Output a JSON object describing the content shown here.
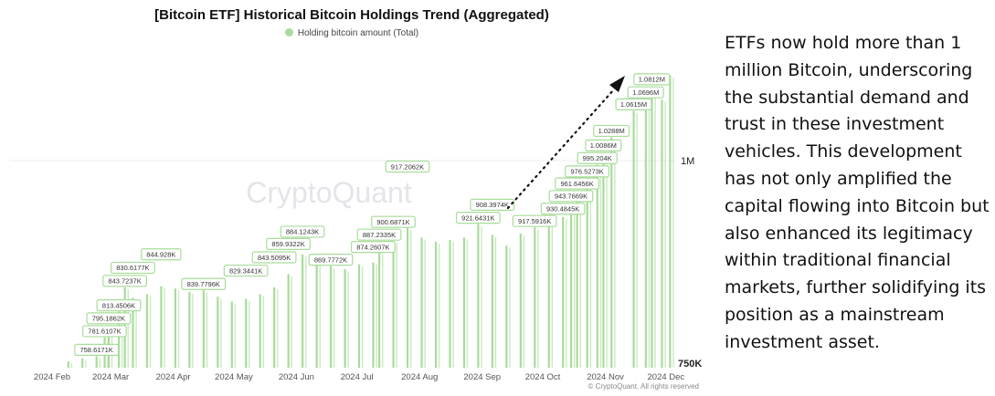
{
  "chart_data": {
    "type": "bar",
    "title": "[Bitcoin ETF] Historical Bitcoin Holdings Trend (Aggregated)",
    "legend": [
      {
        "name": "Holding bitcoin amount (Total)",
        "color": "#a8dc9a"
      }
    ],
    "legend_placement": "top-center",
    "watermark": "CryptoQuant",
    "x_ticks": [
      "2024 Feb",
      "2024 Mar",
      "2024 Apr",
      "2024 May",
      "2024 Jun",
      "2024 Jul",
      "2024 Aug",
      "2024 Sep",
      "2024 Oct",
      "2024 Nov",
      "2024 Dec"
    ],
    "y_ticks": [
      {
        "value": 1000,
        "label": "1M"
      },
      {
        "value": 750,
        "label": "750K"
      }
    ],
    "y_unit": "K BTC",
    "ylim": [
      750,
      1090
    ],
    "grid": "horizontal at 1M",
    "bar_color": "#a8dc9a",
    "series": [
      {
        "name": "Holding bitcoin amount (Total)",
        "points": [
          {
            "date": "2024-02-09",
            "value": 752
          },
          {
            "date": "2024-02-16",
            "value": 756
          },
          {
            "date": "2024-02-23",
            "value": 758.6,
            "label": "758.6171K"
          },
          {
            "date": "2024-02-27",
            "value": 781.6,
            "label": "781.6107K"
          },
          {
            "date": "2024-02-29",
            "value": 795.2,
            "label": "795.1862K"
          },
          {
            "date": "2024-03-05",
            "value": 813.5,
            "label": "813.4506K"
          },
          {
            "date": "2024-03-08",
            "value": 843.7,
            "label": "843.7237K"
          },
          {
            "date": "2024-03-12",
            "value": 830.6,
            "label": "830.6177K"
          },
          {
            "date": "2024-03-19",
            "value": 835
          },
          {
            "date": "2024-03-26",
            "value": 844.9,
            "label": "844.928K"
          },
          {
            "date": "2024-04-02",
            "value": 842
          },
          {
            "date": "2024-04-09",
            "value": 838
          },
          {
            "date": "2024-04-16",
            "value": 839.8,
            "label": "839.7796K"
          },
          {
            "date": "2024-04-23",
            "value": 832
          },
          {
            "date": "2024-04-30",
            "value": 826
          },
          {
            "date": "2024-05-07",
            "value": 829.3,
            "label": "829.3441K"
          },
          {
            "date": "2024-05-14",
            "value": 835
          },
          {
            "date": "2024-05-21",
            "value": 843.5,
            "label": "843.5095K"
          },
          {
            "date": "2024-05-28",
            "value": 859.9,
            "label": "859.9322K"
          },
          {
            "date": "2024-06-04",
            "value": 884.1,
            "label": "884.1243K"
          },
          {
            "date": "2024-06-11",
            "value": 875
          },
          {
            "date": "2024-06-18",
            "value": 869.8,
            "label": "869.7772K"
          },
          {
            "date": "2024-06-25",
            "value": 866
          },
          {
            "date": "2024-07-02",
            "value": 872
          },
          {
            "date": "2024-07-09",
            "value": 874.3,
            "label": "874.2607K"
          },
          {
            "date": "2024-07-12",
            "value": 887.2,
            "label": "887.2335K"
          },
          {
            "date": "2024-07-19",
            "value": 900.7,
            "label": "900.6871K"
          },
          {
            "date": "2024-07-26",
            "value": 917.2,
            "label": "917.2062K"
          },
          {
            "date": "2024-08-02",
            "value": 905
          },
          {
            "date": "2024-08-09",
            "value": 900
          },
          {
            "date": "2024-08-16",
            "value": 902
          },
          {
            "date": "2024-08-23",
            "value": 905
          },
          {
            "date": "2024-08-30",
            "value": 921.6,
            "label": "921.6431K"
          },
          {
            "date": "2024-09-06",
            "value": 908.4,
            "label": "908.3974K"
          },
          {
            "date": "2024-09-13",
            "value": 895
          },
          {
            "date": "2024-09-20",
            "value": 910
          },
          {
            "date": "2024-09-27",
            "value": 917.6,
            "label": "917.5916K"
          },
          {
            "date": "2024-10-04",
            "value": 925
          },
          {
            "date": "2024-10-11",
            "value": 930.5,
            "label": "930.4845K"
          },
          {
            "date": "2024-10-15",
            "value": 943.8,
            "label": "943.7669K"
          },
          {
            "date": "2024-10-18",
            "value": 961.6,
            "label": "961.6456K"
          },
          {
            "date": "2024-10-23",
            "value": 976.5,
            "label": "976.5273K"
          },
          {
            "date": "2024-10-28",
            "value": 995.2,
            "label": "995.204K"
          },
          {
            "date": "2024-10-31",
            "value": 1008.6,
            "label": "1.0086M"
          },
          {
            "date": "2024-11-04",
            "value": 1028.8,
            "label": "1.0288M"
          },
          {
            "date": "2024-11-15",
            "value": 1061.5,
            "label": "1.0615M"
          },
          {
            "date": "2024-11-21",
            "value": 1069.6,
            "label": "1.0696M"
          },
          {
            "date": "2024-11-24",
            "value": 1081.2,
            "label": "1.0812M"
          },
          {
            "date": "2024-11-29",
            "value": 1075
          },
          {
            "date": "2024-12-03",
            "value": 1105
          }
        ]
      }
    ],
    "annotation": "dotted upward arrow"
  },
  "side_text": "ETFs now hold more than 1 million Bitcoin, underscoring the substantial demand and trust in these investment vehicles. This development has not only amplified the capital flowing into Bitcoin but also enhanced its legitimacy within traditional financial markets, further solidifying its position as a mainstream investment asset.",
  "footer": "© CryptoQuant. All rights reserved"
}
